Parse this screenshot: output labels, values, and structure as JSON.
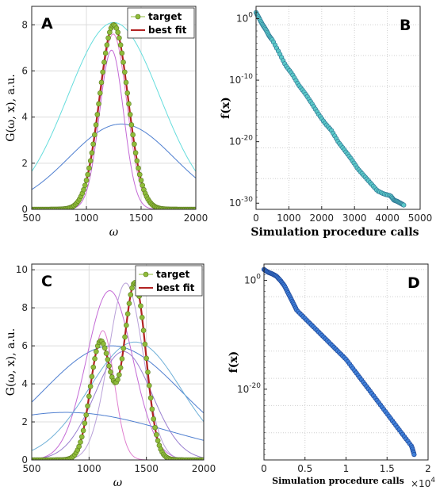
{
  "chart_data": [
    {
      "panel": "A",
      "type": "line",
      "xlabel": "ω",
      "ylabel": "G(ω, x),  a.u.",
      "xlim": [
        500,
        2000
      ],
      "ylim": [
        0,
        8.8
      ],
      "xticks": [
        500,
        1000,
        1500,
        2000
      ],
      "yticks": [
        0,
        2,
        4,
        6,
        8
      ],
      "grid": true,
      "legend": {
        "placement": "top-right",
        "entries": [
          "target",
          "best fit"
        ]
      },
      "gaussians": {
        "target": [
          {
            "a": 8.0,
            "mu": 1250,
            "sigma": 130
          }
        ],
        "best_fit": [
          {
            "a": 8.0,
            "mu": 1250,
            "sigma": 130
          }
        ],
        "trials": [
          {
            "a": 8.1,
            "mu": 1250,
            "sigma": 420,
            "color": "#66dddd"
          },
          {
            "a": 3.7,
            "mu": 1320,
            "sigma": 480,
            "color": "#4f7fd0"
          },
          {
            "a": 6.9,
            "mu": 1230,
            "sigma": 110,
            "color": "#c46ad6"
          },
          {
            "a": 7.6,
            "mu": 1245,
            "sigma": 125,
            "color": "#e07fcf"
          }
        ]
      }
    },
    {
      "panel": "B",
      "type": "scatter",
      "xlabel": "Simulation procedure calls",
      "ylabel": "f(x)",
      "xlim": [
        0,
        5000
      ],
      "ylog_range": [
        -31,
        2
      ],
      "xticks": [
        0,
        1000,
        2000,
        3000,
        4000,
        5000
      ],
      "yticks": [
        "10^0",
        "10^-10",
        "10^-20",
        "10^-30"
      ],
      "grid": true,
      "series": {
        "x": [
          0,
          100,
          200,
          300,
          400,
          500,
          700,
          900,
          1100,
          1300,
          1500,
          1700,
          1900,
          2100,
          2300,
          2500,
          2700,
          2900,
          3100,
          3300,
          3500,
          3700,
          3900,
          4100,
          4200,
          4300,
          4400,
          4500
        ],
        "log10_y": [
          1.0,
          0.0,
          -1.0,
          -1.8,
          -2.8,
          -3.5,
          -5.5,
          -7.6,
          -9.0,
          -10.8,
          -12.2,
          -13.8,
          -15.5,
          -17.0,
          -18.2,
          -20.0,
          -21.4,
          -22.8,
          -24.4,
          -25.6,
          -26.8,
          -28.0,
          -28.5,
          -28.8,
          -29.5,
          -29.7,
          -30.0,
          -30.3
        ]
      }
    },
    {
      "panel": "C",
      "type": "line",
      "xlabel": "ω",
      "ylabel": "G(ω, x),  a.u.",
      "xlim": [
        500,
        2000
      ],
      "ylim": [
        0,
        10.3
      ],
      "xticks": [
        500,
        1000,
        1500,
        2000
      ],
      "yticks": [
        0,
        2,
        4,
        6,
        8,
        10
      ],
      "grid": true,
      "legend": {
        "placement": "top-right",
        "entries": [
          "target",
          "best fit"
        ]
      },
      "gaussians": {
        "target": [
          {
            "a": 6.2,
            "mu": 1100,
            "sigma": 90
          },
          {
            "a": 9.3,
            "mu": 1400,
            "sigma": 95
          }
        ],
        "best_fit": [
          {
            "a": 6.2,
            "mu": 1100,
            "sigma": 90
          },
          {
            "a": 9.3,
            "mu": 1400,
            "sigma": 95
          }
        ],
        "trials": [
          {
            "a": 6.0,
            "mu": 1200,
            "sigma": 600,
            "color": "#4f7fd0"
          },
          {
            "a": 8.9,
            "mu": 1180,
            "sigma": 200,
            "color": "#c46ad6"
          },
          {
            "a": 9.3,
            "mu": 1320,
            "sigma": 150,
            "color": "#b8a0d8"
          },
          {
            "a": 6.8,
            "mu": 1120,
            "sigma": 100,
            "color": "#e07fcf"
          },
          {
            "a": 5.7,
            "mu": 1300,
            "sigma": 250,
            "color": "#9a7fd0"
          },
          {
            "a": 2.5,
            "mu": 800,
            "sigma": 900,
            "color": "#4f7fd0"
          },
          {
            "a": 6.2,
            "mu": 1400,
            "sigma": 400,
            "color": "#6fb0d8"
          }
        ]
      }
    },
    {
      "panel": "D",
      "type": "scatter",
      "xlabel": "Simulation procedure calls",
      "ylabel": "f(x)",
      "x_multiplier": "×10^4",
      "xlim": [
        0,
        2
      ],
      "ylog_range": [
        -33,
        3
      ],
      "xticks": [
        0,
        0.5,
        1,
        1.5,
        2
      ],
      "yticks": [
        "10^0",
        "10^-20"
      ],
      "grid": true,
      "series": {
        "x": [
          0.0,
          0.05,
          0.1,
          0.15,
          0.2,
          0.25,
          0.3,
          0.35,
          0.4,
          0.5,
          0.6,
          0.7,
          0.8,
          0.9,
          1.0,
          1.1,
          1.2,
          1.3,
          1.4,
          1.5,
          1.6,
          1.7,
          1.8,
          1.83
        ],
        "log10_y": [
          2.0,
          1.5,
          1.2,
          0.8,
          0.0,
          -1.0,
          -2.5,
          -4.0,
          -5.5,
          -7.0,
          -8.5,
          -10.0,
          -11.5,
          -13.0,
          -14.5,
          -16.5,
          -18.5,
          -20.5,
          -22.5,
          -24.5,
          -26.5,
          -28.5,
          -30.5,
          -32.0
        ]
      }
    }
  ]
}
